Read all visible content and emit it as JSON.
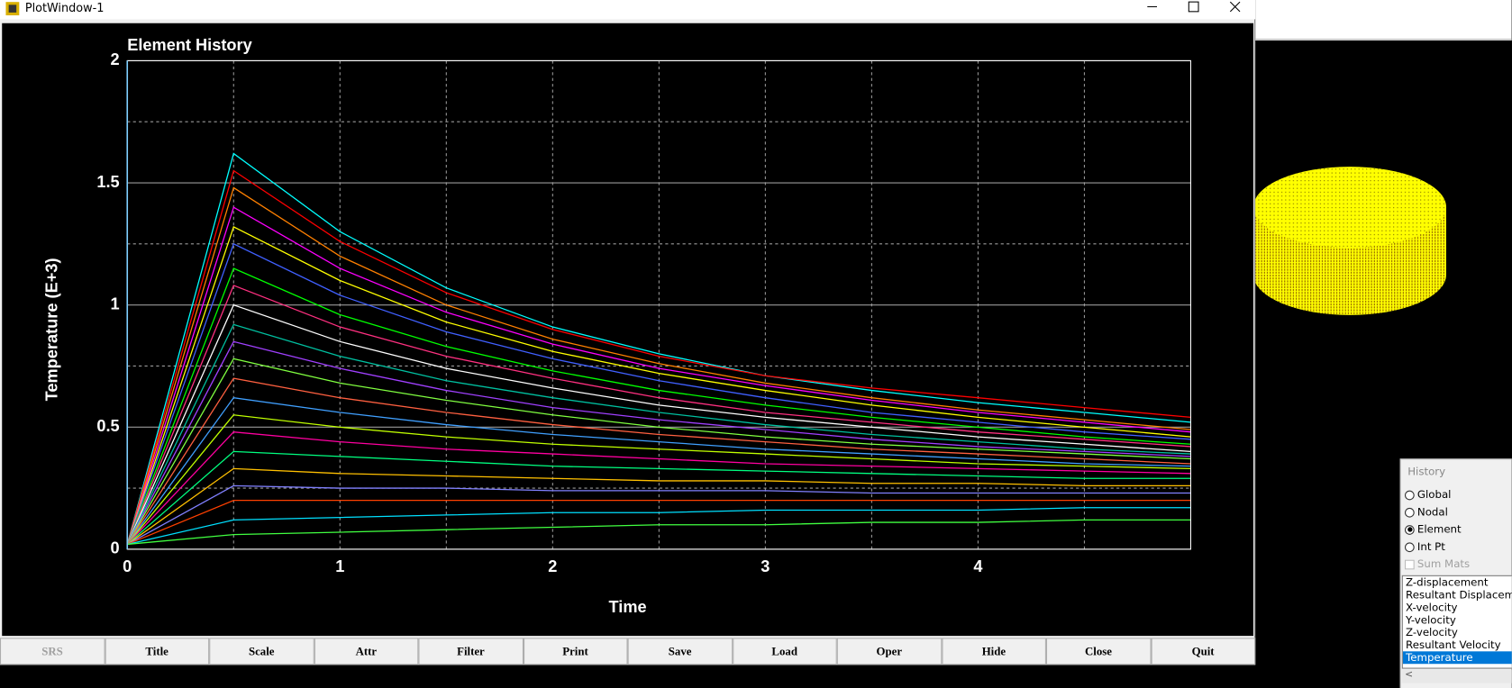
{
  "window": {
    "title": "PlotWindow-1"
  },
  "chart_data": {
    "type": "line",
    "title": "Element History",
    "x_label": "Time",
    "y_label": "Temperature (E+3)",
    "x": [
      0,
      0.5,
      1,
      1.5,
      2,
      2.5,
      3,
      3.5,
      4,
      4.5,
      5
    ],
    "xlim": [
      0,
      5
    ],
    "ylim": [
      0,
      2
    ],
    "xticks": [
      0,
      1,
      2,
      3,
      4
    ],
    "yticks": [
      0,
      0.5,
      1,
      1.5,
      2
    ],
    "minor_xticks": [
      0.5,
      1.5,
      2.5,
      3.5,
      4.5
    ],
    "minor_yticks": [
      0.25,
      0.75,
      1.25,
      1.75
    ],
    "grid": true,
    "series": [
      {
        "color": "#00ffff",
        "values": [
          0.02,
          1.62,
          1.3,
          1.07,
          0.91,
          0.8,
          0.71,
          0.65,
          0.6,
          0.56,
          0.52
        ]
      },
      {
        "color": "#ff0000",
        "values": [
          0.02,
          1.55,
          1.26,
          1.05,
          0.9,
          0.79,
          0.71,
          0.66,
          0.62,
          0.58,
          0.54
        ]
      },
      {
        "color": "#ff8000",
        "values": [
          0.02,
          1.48,
          1.2,
          1.0,
          0.86,
          0.76,
          0.68,
          0.62,
          0.57,
          0.53,
          0.49
        ]
      },
      {
        "color": "#ff00ff",
        "values": [
          0.02,
          1.4,
          1.15,
          0.97,
          0.84,
          0.74,
          0.67,
          0.61,
          0.56,
          0.52,
          0.48
        ]
      },
      {
        "color": "#ffff00",
        "values": [
          0.02,
          1.32,
          1.1,
          0.93,
          0.81,
          0.72,
          0.65,
          0.59,
          0.54,
          0.5,
          0.46
        ]
      },
      {
        "color": "#4060ff",
        "values": [
          0.02,
          1.25,
          1.04,
          0.89,
          0.78,
          0.69,
          0.62,
          0.56,
          0.52,
          0.48,
          0.45
        ]
      },
      {
        "color": "#00ff00",
        "values": [
          0.02,
          1.15,
          0.96,
          0.83,
          0.73,
          0.65,
          0.59,
          0.54,
          0.5,
          0.46,
          0.43
        ]
      },
      {
        "color": "#ff3080",
        "values": [
          0.02,
          1.08,
          0.91,
          0.79,
          0.7,
          0.62,
          0.56,
          0.52,
          0.48,
          0.45,
          0.42
        ]
      },
      {
        "color": "#ffffff",
        "values": [
          0.02,
          1.0,
          0.85,
          0.74,
          0.66,
          0.59,
          0.54,
          0.5,
          0.46,
          0.43,
          0.4
        ]
      },
      {
        "color": "#00c0a0",
        "values": [
          0.02,
          0.92,
          0.79,
          0.69,
          0.62,
          0.56,
          0.51,
          0.47,
          0.44,
          0.41,
          0.39
        ]
      },
      {
        "color": "#a040ff",
        "values": [
          0.02,
          0.85,
          0.74,
          0.65,
          0.58,
          0.53,
          0.49,
          0.45,
          0.42,
          0.4,
          0.38
        ]
      },
      {
        "color": "#80ff40",
        "values": [
          0.02,
          0.78,
          0.68,
          0.61,
          0.55,
          0.5,
          0.46,
          0.43,
          0.41,
          0.39,
          0.37
        ]
      },
      {
        "color": "#ff6040",
        "values": [
          0.02,
          0.7,
          0.62,
          0.56,
          0.51,
          0.47,
          0.44,
          0.41,
          0.39,
          0.37,
          0.35
        ]
      },
      {
        "color": "#40a0ff",
        "values": [
          0.02,
          0.62,
          0.56,
          0.51,
          0.47,
          0.44,
          0.41,
          0.39,
          0.37,
          0.35,
          0.34
        ]
      },
      {
        "color": "#c0ff00",
        "values": [
          0.02,
          0.55,
          0.5,
          0.46,
          0.43,
          0.41,
          0.39,
          0.37,
          0.35,
          0.34,
          0.33
        ]
      },
      {
        "color": "#ff00a0",
        "values": [
          0.02,
          0.48,
          0.44,
          0.41,
          0.39,
          0.37,
          0.35,
          0.34,
          0.33,
          0.32,
          0.31
        ]
      },
      {
        "color": "#00ff80",
        "values": [
          0.02,
          0.4,
          0.38,
          0.36,
          0.34,
          0.33,
          0.32,
          0.31,
          0.3,
          0.29,
          0.29
        ]
      },
      {
        "color": "#ffc000",
        "values": [
          0.02,
          0.33,
          0.31,
          0.3,
          0.29,
          0.28,
          0.28,
          0.27,
          0.27,
          0.26,
          0.26
        ]
      },
      {
        "color": "#8080ff",
        "values": [
          0.02,
          0.26,
          0.25,
          0.25,
          0.24,
          0.24,
          0.24,
          0.23,
          0.23,
          0.23,
          0.23
        ]
      },
      {
        "color": "#ff4000",
        "values": [
          0.02,
          0.2,
          0.2,
          0.2,
          0.2,
          0.2,
          0.2,
          0.2,
          0.2,
          0.2,
          0.2
        ]
      },
      {
        "color": "#00e0ff",
        "values": [
          0.02,
          0.12,
          0.13,
          0.14,
          0.15,
          0.15,
          0.16,
          0.16,
          0.16,
          0.17,
          0.17
        ]
      },
      {
        "color": "#40ff40",
        "values": [
          0.02,
          0.06,
          0.07,
          0.08,
          0.09,
          0.1,
          0.1,
          0.11,
          0.11,
          0.12,
          0.12
        ]
      }
    ]
  },
  "toolbar": {
    "buttons": [
      {
        "label": "SRS",
        "enabled": false
      },
      {
        "label": "Title",
        "enabled": true
      },
      {
        "label": "Scale",
        "enabled": true
      },
      {
        "label": "Attr",
        "enabled": true
      },
      {
        "label": "Filter",
        "enabled": true
      },
      {
        "label": "Print",
        "enabled": true
      },
      {
        "label": "Save",
        "enabled": true
      },
      {
        "label": "Load",
        "enabled": true
      },
      {
        "label": "Oper",
        "enabled": true
      },
      {
        "label": "Hide",
        "enabled": true
      },
      {
        "label": "Close",
        "enabled": true
      },
      {
        "label": "Quit",
        "enabled": true
      }
    ]
  },
  "history_panel": {
    "title": "History",
    "options": [
      {
        "label": "Global",
        "selected": false
      },
      {
        "label": "Nodal",
        "selected": false
      },
      {
        "label": "Element",
        "selected": true
      },
      {
        "label": "Int Pt",
        "selected": false
      }
    ],
    "sum_mats": "Sum Mats",
    "list": [
      {
        "label": "Z-displacement",
        "selected": false
      },
      {
        "label": "Resultant Displacement",
        "selected": false
      },
      {
        "label": "X-velocity",
        "selected": false
      },
      {
        "label": "Y-velocity",
        "selected": false
      },
      {
        "label": "Z-velocity",
        "selected": false
      },
      {
        "label": "Resultant Velocity",
        "selected": false
      },
      {
        "label": "Temperature",
        "selected": true
      }
    ]
  }
}
